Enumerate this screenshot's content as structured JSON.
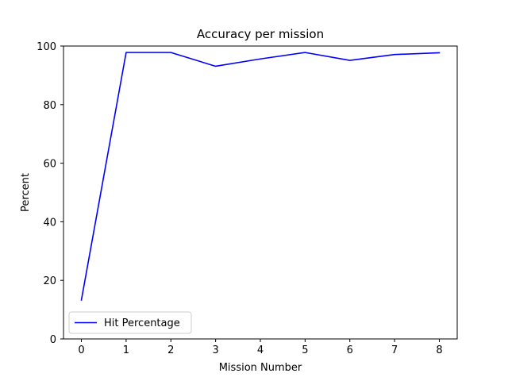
{
  "chart_data": {
    "type": "line",
    "title": "Accuracy per mission",
    "xlabel": "Mission Number",
    "ylabel": "Percent",
    "xlim": [
      -0.4,
      8.4
    ],
    "ylim": [
      0,
      100
    ],
    "x_ticks": [
      0,
      1,
      2,
      3,
      4,
      5,
      6,
      7,
      8
    ],
    "y_ticks": [
      0,
      20,
      40,
      60,
      80,
      100
    ],
    "grid": false,
    "legend_position": "lower-left",
    "series": [
      {
        "name": "Hit Percentage",
        "color": "#0000ff",
        "x": [
          0,
          1,
          2,
          3,
          4,
          5,
          6,
          7,
          8
        ],
        "y": [
          13.3,
          97.8,
          97.8,
          93.1,
          95.6,
          97.8,
          95.1,
          97.1,
          97.7
        ]
      }
    ]
  }
}
